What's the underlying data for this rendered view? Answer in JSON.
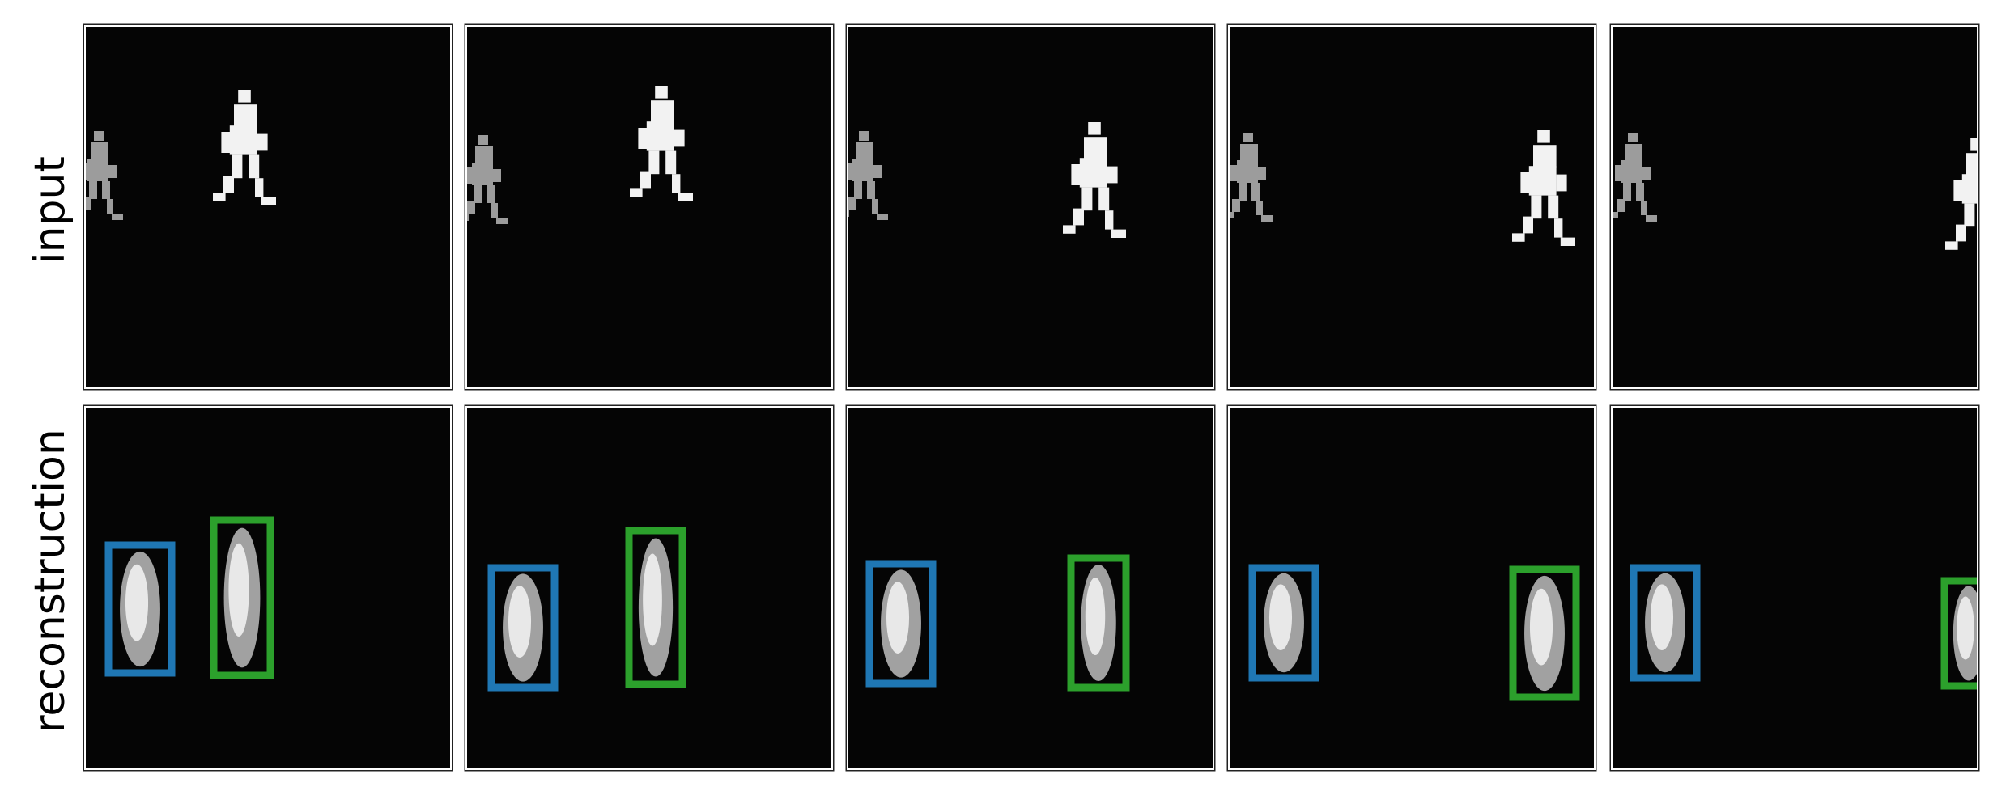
{
  "row_labels": {
    "input": "input",
    "reconstruction": "reconstruction"
  },
  "box_colors": {
    "object_1": "#1f77b4",
    "object_2": "#2ca02c"
  },
  "frames": [
    {
      "index": 1
    },
    {
      "index": 2
    },
    {
      "index": 3
    },
    {
      "index": 4
    },
    {
      "index": 5
    }
  ]
}
